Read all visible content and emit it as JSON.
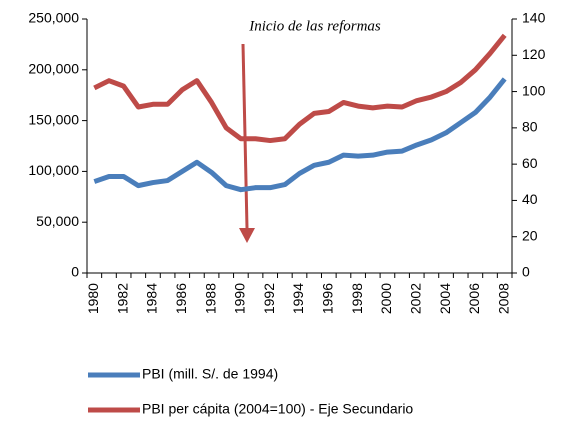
{
  "chart_data": {
    "type": "line",
    "annotation": "Inicio de las reformas",
    "categories": [
      "1980",
      null,
      "1982",
      null,
      "1984",
      null,
      "1986",
      null,
      "1988",
      null,
      "1990",
      null,
      "1992",
      null,
      "1994",
      null,
      "1996",
      null,
      "1998",
      null,
      "2000",
      null,
      "2002",
      null,
      "2004",
      null,
      "2006",
      null,
      "2008"
    ],
    "series": [
      {
        "name": "PBI (mill. S/. de 1994)",
        "color": "#4a7ebb",
        "values": [
          90000,
          95000,
          95000,
          86000,
          89000,
          91000,
          100000,
          109000,
          99000,
          86000,
          82000,
          84000,
          84000,
          87000,
          98000,
          106000,
          109000,
          116000,
          115000,
          116000,
          119000,
          120000,
          126000,
          131000,
          138000,
          148000,
          158000,
          173000,
          191000
        ]
      },
      {
        "name": "PBI per cápita (2004=100) - Eje Secundario",
        "color": "#be4b48",
        "axis": "y2",
        "values": [
          102,
          106,
          103,
          91.5,
          93,
          93,
          101,
          106,
          94,
          80,
          74,
          74,
          73,
          74,
          82,
          88,
          89,
          94,
          92,
          91,
          92,
          91.5,
          95,
          97,
          100,
          105,
          112,
          121,
          131
        ]
      }
    ],
    "ylim": [
      0,
      250000
    ],
    "yticks": [
      0,
      {
        "value": 50000,
        "label": "50,000"
      },
      {
        "value": 100000,
        "label": "100,000"
      },
      {
        "value": 150000,
        "label": "150,000"
      },
      {
        "value": 200000,
        "label": "200,000"
      },
      {
        "value": 250000,
        "label": "250,000"
      }
    ],
    "y2lim": [
      0,
      140
    ],
    "y2ticks": [
      0,
      20,
      40,
      60,
      80,
      100,
      120,
      140
    ],
    "grid": false
  }
}
